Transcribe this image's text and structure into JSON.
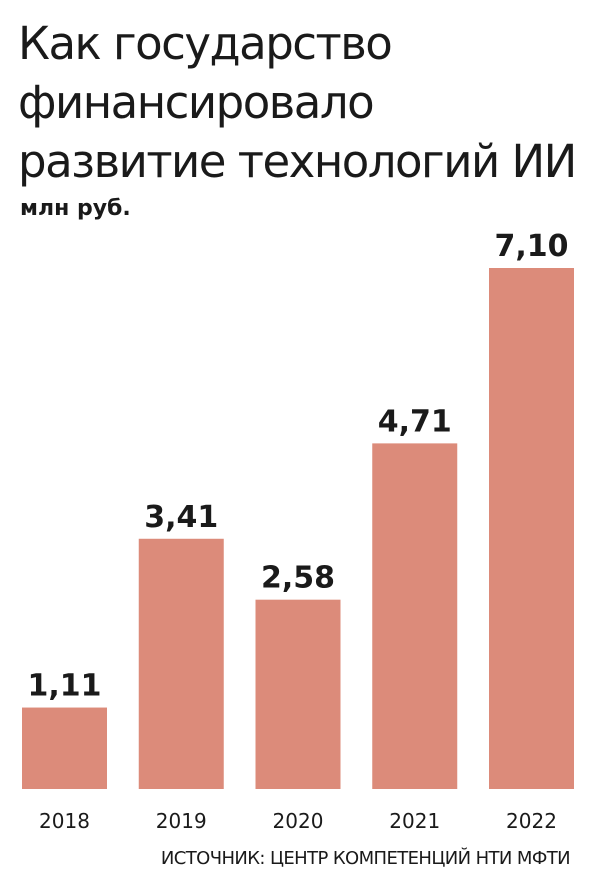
{
  "title_lines": [
    "Как государство",
    "финансировало",
    "развитие технологий ИИ"
  ],
  "subtitle": "млн руб.",
  "source": "ИСТОЧНИК: ЦЕНТР КОМПЕТЕНЦИЙ НТИ МФТИ",
  "colors": {
    "bar": "#dc8b7a",
    "text": "#1a1a1a",
    "background": "#ffffff"
  },
  "chart_data": {
    "type": "bar",
    "categories": [
      "2018",
      "2019",
      "2020",
      "2021",
      "2022"
    ],
    "values": [
      1.11,
      3.41,
      2.58,
      4.71,
      7.1
    ],
    "value_labels": [
      "1,11",
      "3,41",
      "2,58",
      "4,71",
      "7,10"
    ],
    "title": "Как государство финансировало развитие технологий ИИ",
    "ylabel": "млн руб.",
    "ylim": [
      0,
      7.1
    ],
    "grid": false,
    "legend": "none"
  }
}
